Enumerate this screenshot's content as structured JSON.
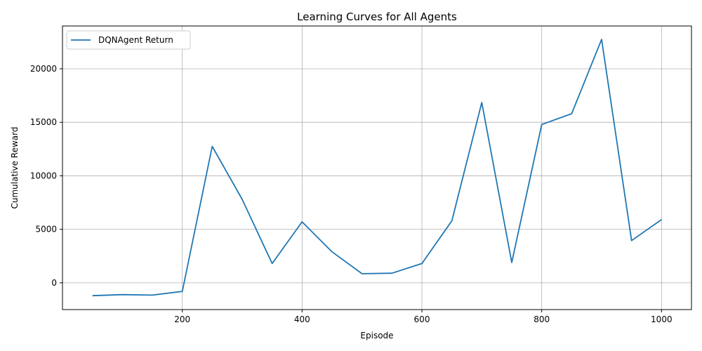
{
  "chart_data": {
    "type": "line",
    "title": "Learning Curves for All Agents",
    "xlabel": "Episode",
    "ylabel": "Cumulative Reward",
    "xlim": [
      0,
      1050
    ],
    "ylim": [
      -2500,
      24000
    ],
    "xticks": [
      200,
      400,
      600,
      800,
      1000
    ],
    "yticks": [
      0,
      5000,
      10000,
      15000,
      20000
    ],
    "grid": true,
    "legend_position": "top-left",
    "series": [
      {
        "name": "DQNAgent Return",
        "color": "#1f77b4",
        "x": [
          50,
          100,
          150,
          200,
          250,
          300,
          350,
          400,
          450,
          500,
          550,
          600,
          650,
          700,
          750,
          800,
          850,
          900,
          950,
          1000
        ],
        "y": [
          -1200,
          -1100,
          -1150,
          -800,
          12750,
          7800,
          1800,
          5700,
          2900,
          850,
          900,
          1800,
          5800,
          16850,
          1900,
          14800,
          15800,
          22750,
          3950,
          5900
        ]
      }
    ]
  }
}
